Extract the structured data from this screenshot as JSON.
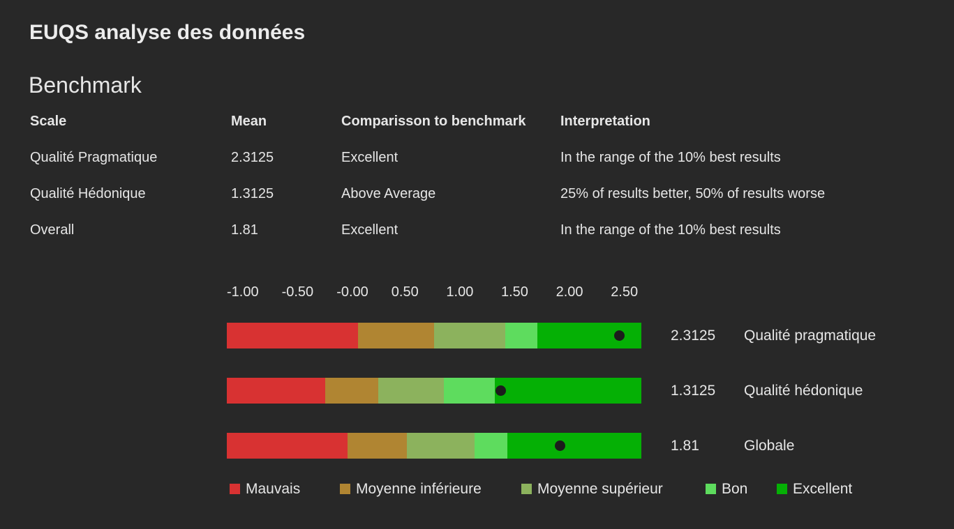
{
  "app": {
    "title": "EUQS analyse des données"
  },
  "benchmark": {
    "title": "Benchmark",
    "columns": [
      "Scale",
      "Mean",
      "Comparisson to benchmark",
      "Interpretation"
    ],
    "rows": [
      [
        "Qualité Pragmatique",
        "2.3125",
        "Excellent",
        "In the range of the 10% best results"
      ],
      [
        "Qualité Hédonique",
        "1.3125",
        "Above Average",
        "25% of results better, 50% of results worse"
      ],
      [
        "Overall",
        "1.81",
        "Excellent",
        "In the range of the 10% best results"
      ]
    ]
  },
  "chart_data": {
    "type": "bar",
    "axis_ticks": [
      "-1.00",
      "-0.50",
      "-0.00",
      "0.50",
      "1.00",
      "1.50",
      "2.00",
      "2.50"
    ],
    "xlim": [
      -1,
      2.5
    ],
    "categories_names": [
      "Mauvais",
      "Moyenne inférieure",
      "Moyenne supérieur",
      "Bon",
      "Excellent"
    ],
    "category_colors": [
      "#d83232",
      "#b08532",
      "#8cb25d",
      "#5edc5e",
      "#05b005"
    ],
    "series": [
      {
        "name": "Qualité pragmatique",
        "value": 2.3125,
        "value_label": "2.3125",
        "thresholds": [
          -1.0,
          0.11,
          0.75,
          1.35,
          1.62,
          2.5
        ]
      },
      {
        "name": "Qualité hédonique",
        "value": 1.3125,
        "value_label": "1.3125",
        "thresholds": [
          -1.0,
          -0.17,
          0.28,
          0.83,
          1.26,
          2.5
        ]
      },
      {
        "name": "Globale",
        "value": 1.81,
        "value_label": "1.81",
        "thresholds": [
          -1.0,
          0.02,
          0.52,
          1.09,
          1.37,
          2.5
        ]
      }
    ]
  }
}
